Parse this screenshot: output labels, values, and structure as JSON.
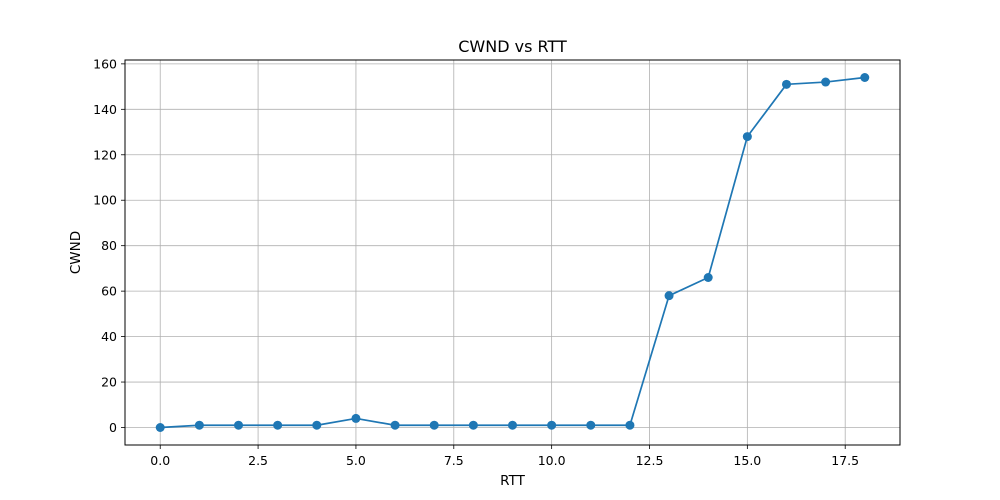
{
  "chart_data": {
    "type": "line",
    "title": "CWND vs RTT",
    "xlabel": "RTT",
    "ylabel": "CWND",
    "xlim": [
      -0.9,
      18.9
    ],
    "ylim": [
      -7.7,
      161.7
    ],
    "x_ticks": [
      0.0,
      2.5,
      5.0,
      7.5,
      10.0,
      12.5,
      15.0,
      17.5
    ],
    "x_tick_labels": [
      "0.0",
      "2.5",
      "5.0",
      "7.5",
      "10.0",
      "12.5",
      "15.0",
      "17.5"
    ],
    "y_ticks": [
      0,
      20,
      40,
      60,
      80,
      100,
      120,
      140,
      160
    ],
    "y_tick_labels": [
      "0",
      "20",
      "40",
      "60",
      "80",
      "100",
      "120",
      "140",
      "160"
    ],
    "grid": true,
    "series": [
      {
        "color": "#1f77b4",
        "marker": "circle",
        "x": [
          0,
          1,
          2,
          3,
          4,
          5,
          6,
          7,
          8,
          9,
          10,
          11,
          12,
          13,
          14,
          15,
          16,
          17,
          18
        ],
        "y": [
          0,
          1,
          1,
          1,
          1,
          4,
          1,
          1,
          1,
          1,
          1,
          1,
          1,
          58,
          66,
          128,
          151,
          152,
          154
        ]
      }
    ]
  }
}
